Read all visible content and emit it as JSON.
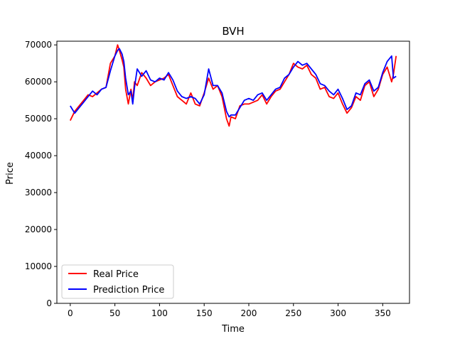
{
  "chart_data": {
    "type": "line",
    "title": "BVH",
    "xlabel": "Time",
    "ylabel": "Price",
    "xlim": [
      -15,
      380
    ],
    "ylim": [
      0,
      71000
    ],
    "xticks": [
      0,
      50,
      100,
      150,
      200,
      250,
      300,
      350
    ],
    "yticks": [
      0,
      10000,
      20000,
      30000,
      40000,
      50000,
      60000,
      70000
    ],
    "legend_position": "lower-left",
    "grid": false,
    "series": [
      {
        "name": "Real Price",
        "color": "#ff0000",
        "x": [
          0,
          5,
          10,
          15,
          20,
          25,
          30,
          35,
          40,
          45,
          50,
          53,
          55,
          58,
          60,
          62,
          65,
          68,
          70,
          72,
          75,
          80,
          85,
          90,
          95,
          100,
          105,
          110,
          115,
          120,
          125,
          130,
          135,
          140,
          145,
          150,
          155,
          160,
          165,
          170,
          175,
          178,
          180,
          185,
          190,
          195,
          200,
          205,
          210,
          215,
          220,
          225,
          230,
          235,
          240,
          245,
          250,
          255,
          260,
          265,
          270,
          275,
          280,
          285,
          290,
          295,
          300,
          305,
          310,
          315,
          320,
          325,
          330,
          335,
          340,
          345,
          350,
          355,
          360,
          362,
          365
        ],
        "y": [
          49500,
          52000,
          53500,
          55000,
          56500,
          56000,
          57000,
          58000,
          58500,
          65000,
          67000,
          70000,
          68500,
          66000,
          64000,
          58000,
          54000,
          58000,
          55000,
          60000,
          59000,
          62500,
          61000,
          59000,
          60000,
          60500,
          61000,
          62000,
          59000,
          56000,
          55000,
          54000,
          57000,
          54000,
          53500,
          57000,
          61000,
          58000,
          59000,
          56000,
          50000,
          48000,
          50500,
          50000,
          53500,
          54000,
          54000,
          54500,
          55000,
          56500,
          54000,
          56000,
          57500,
          58000,
          60000,
          62000,
          65000,
          64000,
          63500,
          64500,
          62000,
          61000,
          58000,
          58500,
          56000,
          55500,
          57000,
          54000,
          51500,
          53000,
          56000,
          55000,
          59000,
          60000,
          56000,
          58000,
          62000,
          64000,
          60000,
          62000,
          67000
        ]
      },
      {
        "name": "Prediction Price",
        "color": "#0000ff",
        "x": [
          0,
          5,
          10,
          15,
          20,
          25,
          30,
          35,
          40,
          45,
          50,
          53,
          55,
          58,
          60,
          62,
          65,
          68,
          70,
          72,
          75,
          80,
          85,
          90,
          95,
          100,
          105,
          110,
          115,
          120,
          125,
          130,
          135,
          140,
          145,
          150,
          155,
          160,
          165,
          170,
          175,
          178,
          180,
          185,
          190,
          195,
          200,
          205,
          210,
          215,
          220,
          225,
          230,
          235,
          240,
          245,
          250,
          255,
          260,
          265,
          270,
          275,
          280,
          285,
          290,
          295,
          300,
          305,
          310,
          315,
          320,
          325,
          330,
          335,
          340,
          345,
          350,
          355,
          360,
          362,
          365
        ],
        "y": [
          53500,
          51500,
          53000,
          54500,
          56000,
          57500,
          56500,
          58000,
          58500,
          63000,
          67000,
          68500,
          69000,
          67500,
          65500,
          61000,
          56500,
          57500,
          54000,
          58500,
          63500,
          61500,
          63000,
          60500,
          60000,
          61000,
          60500,
          62500,
          60500,
          57500,
          56000,
          55500,
          56000,
          55500,
          54000,
          56500,
          63500,
          59000,
          59000,
          57000,
          52000,
          50500,
          51000,
          51000,
          53000,
          55000,
          55500,
          55000,
          56500,
          57000,
          55000,
          56500,
          58000,
          58500,
          61000,
          62000,
          64000,
          65500,
          64500,
          65000,
          63500,
          62000,
          59500,
          59000,
          57500,
          56500,
          58000,
          55500,
          52500,
          53500,
          57000,
          56500,
          59500,
          60500,
          57500,
          58500,
          62500,
          65500,
          67000,
          61000,
          61500
        ]
      }
    ]
  }
}
